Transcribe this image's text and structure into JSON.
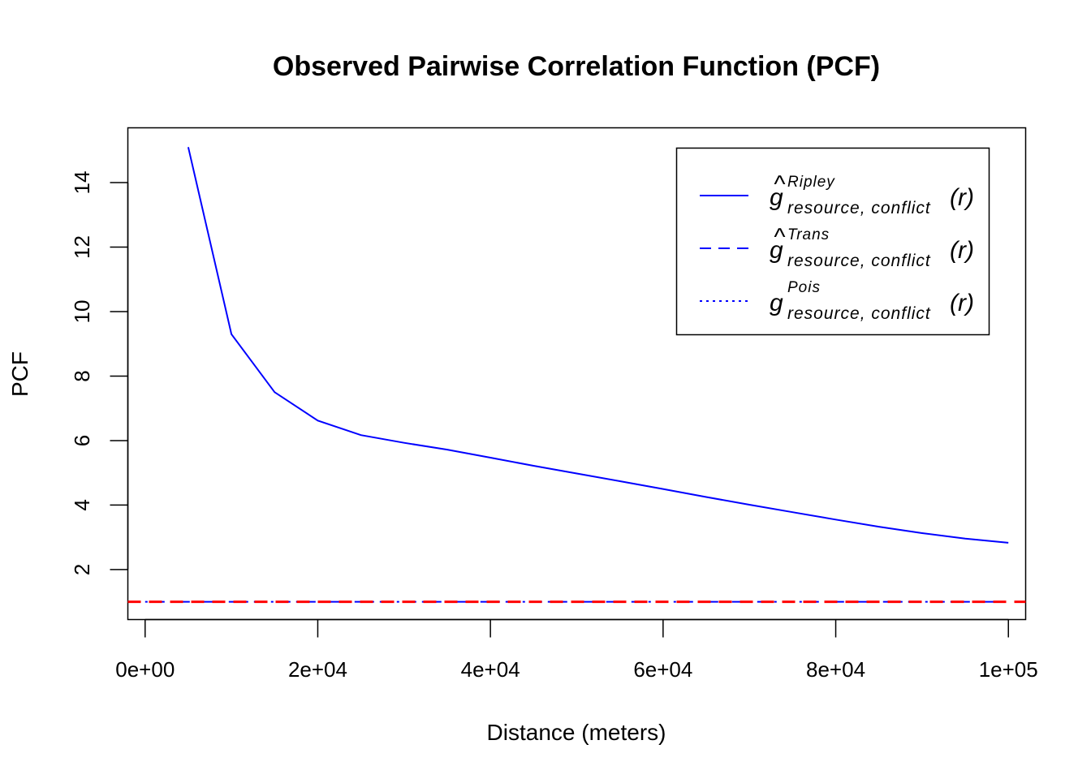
{
  "chart_data": {
    "type": "line",
    "title": "Observed Pairwise Correlation Function (PCF)",
    "xlabel": "Distance (meters)",
    "ylabel": "PCF",
    "xlim": [
      -2000,
      102000
    ],
    "ylim": [
      0.45,
      15.7
    ],
    "x_ticks": [
      0,
      20000,
      40000,
      60000,
      80000,
      100000
    ],
    "x_tick_labels": [
      "0e+00",
      "2e+04",
      "4e+04",
      "6e+04",
      "8e+04",
      "1e+05"
    ],
    "y_ticks": [
      2,
      4,
      6,
      8,
      10,
      12,
      14
    ],
    "y_tick_labels": [
      "2",
      "4",
      "6",
      "8",
      "10",
      "12",
      "14"
    ],
    "grid": false,
    "legend_position": "top-right",
    "legend": [
      {
        "hat": "^",
        "base": "g",
        "sup": "Ripley",
        "sub": "resource, conflict",
        "arg": "(r)",
        "linestyle": "solid",
        "color": "#0000ff"
      },
      {
        "hat": "^",
        "base": "g",
        "sup": "Trans",
        "sub": "resource, conflict",
        "arg": "(r)",
        "linestyle": "dashed",
        "color": "#0000ff"
      },
      {
        "hat": "",
        "base": "g",
        "sup": "Pois",
        "sub": "resource, conflict",
        "arg": "(r)",
        "linestyle": "dotted",
        "color": "#0000ff"
      }
    ],
    "series": [
      {
        "linestyle": "solid",
        "color": "#0000ff",
        "x": [
          5000,
          10000,
          15000,
          20000,
          25000,
          30000,
          35000,
          40000,
          45000,
          50000,
          55000,
          60000,
          65000,
          70000,
          75000,
          80000,
          85000,
          90000,
          95000,
          100000
        ],
        "values": [
          15.1,
          9.3,
          7.5,
          6.62,
          6.17,
          5.93,
          5.72,
          5.47,
          5.22,
          4.98,
          4.74,
          4.5,
          4.25,
          4.01,
          3.78,
          3.55,
          3.33,
          3.13,
          2.96,
          2.83
        ]
      },
      {
        "linestyle": "dotdash",
        "color": "#0000ff",
        "x": [
          0,
          100000
        ],
        "values": [
          1,
          1
        ]
      },
      {
        "linestyle": "dashed",
        "color": "#ff0000",
        "reference_line": "h",
        "values": [
          1
        ]
      }
    ]
  }
}
